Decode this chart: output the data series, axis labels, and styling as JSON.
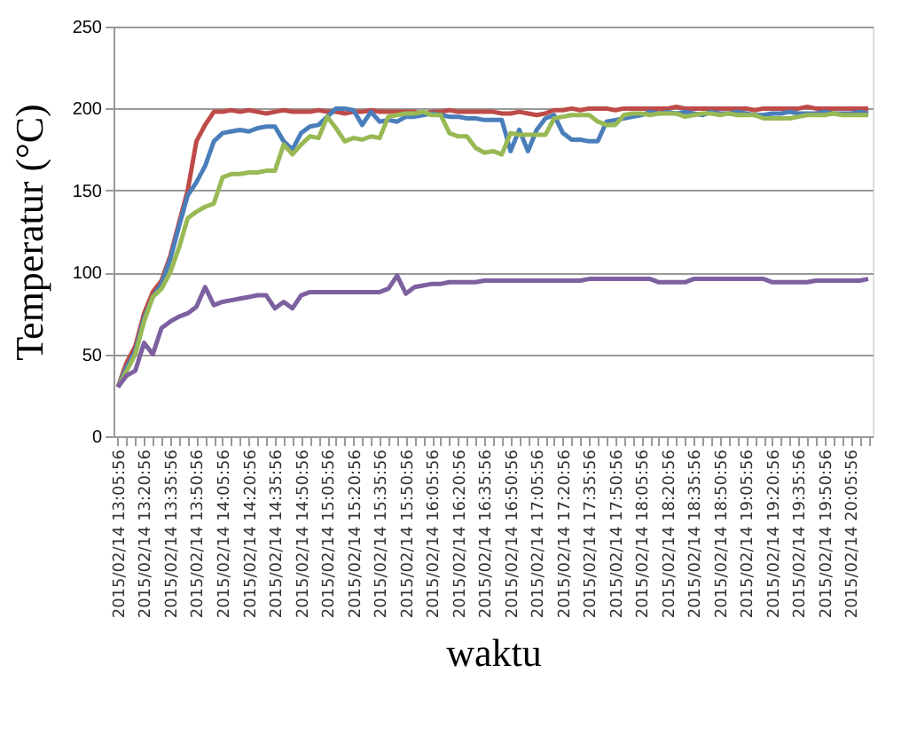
{
  "chart_data": {
    "type": "line",
    "xlabel": "waktu",
    "ylabel": "Temperatur (°C)",
    "categories": [
      "2015/02/14 13:05:56",
      null,
      null,
      "2015/02/14 13:20:56",
      null,
      null,
      "2015/02/14 13:35:56",
      null,
      null,
      "2015/02/14 13:50:56",
      null,
      null,
      "2015/02/14 14:05:56",
      null,
      null,
      "2015/02/14 14:20:56",
      null,
      null,
      "2015/02/14 14:35:56",
      null,
      null,
      "2015/02/14 14:50:56",
      null,
      null,
      "2015/02/14 15:05:56",
      null,
      null,
      "2015/02/14 15:20:56",
      null,
      null,
      "2015/02/14 15:35:56",
      null,
      null,
      "2015/02/14 15:50:56",
      null,
      null,
      "2015/02/14 16:05:56",
      null,
      null,
      "2015/02/14 16:20:56",
      null,
      null,
      "2015/02/14 16:35:56",
      null,
      null,
      "2015/02/14 16:50:56",
      null,
      null,
      "2015/02/14 17:05:56",
      null,
      null,
      "2015/02/14 17:20:56",
      null,
      null,
      "2015/02/14 17:35:56",
      null,
      null,
      "2015/02/14 17:50:56",
      null,
      null,
      "2015/02/14 18:05:56",
      null,
      null,
      "2015/02/14 18:20:56",
      null,
      null,
      "2015/02/14 18:35:56",
      null,
      null,
      "2015/02/14 18:50:56",
      null,
      null,
      "2015/02/14 19:05:56",
      null,
      null,
      "2015/02/14 19:20:56",
      null,
      null,
      "2015/02/14 19:35:56",
      null,
      null,
      "2015/02/14 19:50:56",
      null,
      null,
      "2015/02/14 20:05:56",
      null,
      null
    ],
    "series": [
      {
        "color": "#be4b48",
        "values": [
          30,
          45,
          55,
          75,
          88,
          95,
          110,
          130,
          150,
          180,
          190,
          198,
          198,
          199,
          198,
          199,
          198,
          197,
          198,
          199,
          198,
          198,
          198,
          199,
          198,
          198,
          197,
          198,
          198,
          199,
          198,
          198,
          198,
          198,
          198,
          197,
          198,
          198,
          199,
          198,
          198,
          198,
          198,
          198,
          197,
          197,
          198,
          197,
          196,
          197,
          199,
          199,
          200,
          199,
          200,
          200,
          200,
          199,
          200,
          200,
          200,
          200,
          200,
          200,
          201,
          200,
          200,
          200,
          200,
          200,
          200,
          200,
          200,
          199,
          200,
          200,
          200,
          200,
          200,
          201,
          200,
          200,
          200,
          200,
          200,
          200,
          200
        ]
      },
      {
        "color": "#4a7ebb",
        "values": [
          30,
          42,
          52,
          72,
          85,
          93,
          108,
          128,
          147,
          155,
          165,
          180,
          185,
          186,
          187,
          186,
          188,
          189,
          189,
          180,
          175,
          185,
          189,
          190,
          195,
          200,
          200,
          199,
          190,
          198,
          192,
          193,
          192,
          195,
          195,
          196,
          197,
          196,
          195,
          195,
          194,
          194,
          193,
          193,
          193,
          174,
          187,
          174,
          187,
          194,
          196,
          185,
          181,
          181,
          180,
          180,
          192,
          193,
          194,
          195,
          196,
          198,
          197,
          198,
          197,
          198,
          197,
          196,
          198,
          197,
          197,
          198,
          197,
          196,
          196,
          197,
          197,
          198,
          197,
          197,
          197,
          198,
          197,
          197,
          197,
          198,
          197
        ]
      },
      {
        "color": "#98b954",
        "values": [
          30,
          40,
          50,
          70,
          85,
          90,
          100,
          115,
          133,
          137,
          140,
          142,
          158,
          160,
          160,
          161,
          161,
          162,
          162,
          178,
          172,
          178,
          183,
          182,
          195,
          188,
          180,
          182,
          181,
          183,
          182,
          195,
          196,
          197,
          197,
          198,
          196,
          196,
          185,
          183,
          183,
          176,
          173,
          174,
          172,
          185,
          184,
          184,
          184,
          184,
          194,
          195,
          196,
          196,
          196,
          192,
          190,
          190,
          196,
          197,
          197,
          196,
          197,
          197,
          197,
          195,
          196,
          197,
          197,
          196,
          197,
          196,
          196,
          196,
          194,
          194,
          194,
          194,
          195,
          196,
          196,
          196,
          197,
          196,
          196,
          196,
          196
        ]
      },
      {
        "color": "#7d60a0",
        "values": [
          30,
          37,
          40,
          57,
          50,
          66,
          70,
          73,
          75,
          79,
          91,
          80,
          82,
          83,
          84,
          85,
          86,
          86,
          78,
          82,
          78,
          86,
          88,
          88,
          88,
          88,
          88,
          88,
          88,
          88,
          88,
          90,
          98,
          87,
          91,
          92,
          93,
          93,
          94,
          94,
          94,
          94,
          95,
          95,
          95,
          95,
          95,
          95,
          95,
          95,
          95,
          95,
          95,
          95,
          96,
          96,
          96,
          96,
          96,
          96,
          96,
          96,
          94,
          94,
          94,
          94,
          96,
          96,
          96,
          96,
          96,
          96,
          96,
          96,
          96,
          94,
          94,
          94,
          94,
          94,
          95,
          95,
          95,
          95,
          95,
          95,
          96
        ]
      }
    ],
    "ylim": [
      0,
      250
    ],
    "yticks": [
      0,
      50,
      100,
      150,
      200,
      250
    ],
    "grid": "y",
    "legend": false,
    "marker": "none",
    "line_style": "solid"
  }
}
